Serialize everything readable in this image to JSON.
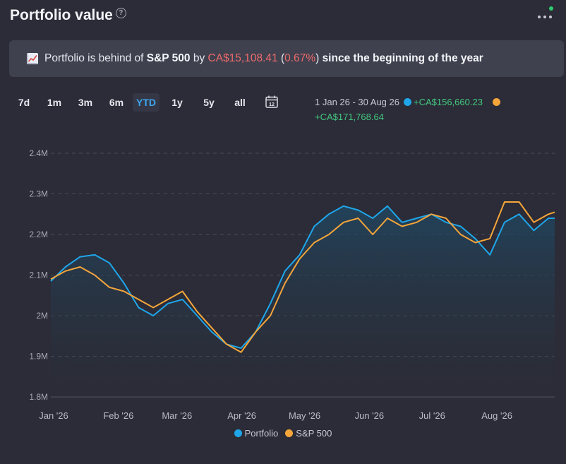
{
  "header": {
    "title": "Portfolio value",
    "help_glyph": "?"
  },
  "banner": {
    "icon": "chart-up-icon",
    "prefix": "Portfolio is behind of",
    "benchmark": "S&P 500",
    "by": "by",
    "amount": "CA$15,108.41",
    "paren_open": "(",
    "percent": "0.67%",
    "paren_close": ")",
    "suffix": "since the beginning of the year"
  },
  "timeframes": [
    "7d",
    "1m",
    "3m",
    "6m",
    "YTD",
    "1y",
    "5y",
    "all"
  ],
  "active_timeframe": "YTD",
  "range": {
    "dates": "1 Jan 26 - 30 Aug 26",
    "portfolio_change": "+CA$156,660.23",
    "benchmark_change": "+CA$171,768.64"
  },
  "colors": {
    "portfolio": "#1fa6ea",
    "benchmark": "#f5a53a",
    "positive": "#42c77f",
    "negative": "#ee6b6b"
  },
  "chart_data": {
    "type": "line",
    "x_labels": [
      "Jan '26",
      "Feb '26",
      "Mar '26",
      "Apr '26",
      "May '26",
      "Jun '26",
      "Jul '26",
      "Aug '26"
    ],
    "y_ticks": [
      "2.4M",
      "2.3M",
      "2.2M",
      "2.1M",
      "2M",
      "1.9M",
      "1.8M"
    ],
    "y_tick_values": [
      2400000,
      2300000,
      2200000,
      2100000,
      2000000,
      1900000,
      1800000
    ],
    "ylim": [
      1800000,
      2400000
    ],
    "x_range": [
      "2026-01-01",
      "2026-08-30"
    ],
    "grid": true,
    "legend_position": "bottom",
    "series": [
      {
        "name": "Portfolio",
        "x": [
          "2026-01-01",
          "2026-01-08",
          "2026-01-15",
          "2026-01-22",
          "2026-01-29",
          "2026-02-05",
          "2026-02-12",
          "2026-02-19",
          "2026-02-26",
          "2026-03-05",
          "2026-03-12",
          "2026-03-19",
          "2026-03-26",
          "2026-04-02",
          "2026-04-09",
          "2026-04-16",
          "2026-04-23",
          "2026-04-30",
          "2026-05-07",
          "2026-05-14",
          "2026-05-21",
          "2026-05-28",
          "2026-06-04",
          "2026-06-11",
          "2026-06-18",
          "2026-06-25",
          "2026-07-02",
          "2026-07-09",
          "2026-07-16",
          "2026-07-23",
          "2026-07-30",
          "2026-08-06",
          "2026-08-13",
          "2026-08-20",
          "2026-08-27",
          "2026-08-30"
        ],
        "values": [
          2085000,
          2120000,
          2145000,
          2150000,
          2130000,
          2080000,
          2020000,
          2000000,
          2030000,
          2040000,
          2000000,
          1960000,
          1930000,
          1920000,
          1960000,
          2030000,
          2110000,
          2150000,
          2220000,
          2250000,
          2270000,
          2260000,
          2240000,
          2270000,
          2230000,
          2240000,
          2250000,
          2230000,
          2220000,
          2190000,
          2150000,
          2230000,
          2250000,
          2210000,
          2240000,
          2240000
        ]
      },
      {
        "name": "S&P 500",
        "x": [
          "2026-01-01",
          "2026-01-08",
          "2026-01-15",
          "2026-01-22",
          "2026-01-29",
          "2026-02-05",
          "2026-02-12",
          "2026-02-19",
          "2026-02-26",
          "2026-03-05",
          "2026-03-12",
          "2026-03-19",
          "2026-03-26",
          "2026-04-02",
          "2026-04-09",
          "2026-04-16",
          "2026-04-23",
          "2026-04-30",
          "2026-05-07",
          "2026-05-14",
          "2026-05-21",
          "2026-05-28",
          "2026-06-04",
          "2026-06-11",
          "2026-06-18",
          "2026-06-25",
          "2026-07-02",
          "2026-07-09",
          "2026-07-16",
          "2026-07-23",
          "2026-07-30",
          "2026-08-06",
          "2026-08-13",
          "2026-08-20",
          "2026-08-27",
          "2026-08-30"
        ],
        "values": [
          2090000,
          2110000,
          2120000,
          2100000,
          2070000,
          2060000,
          2040000,
          2020000,
          2040000,
          2060000,
          2010000,
          1970000,
          1930000,
          1910000,
          1960000,
          2000000,
          2080000,
          2140000,
          2180000,
          2200000,
          2230000,
          2240000,
          2200000,
          2240000,
          2220000,
          2230000,
          2250000,
          2240000,
          2200000,
          2180000,
          2190000,
          2280000,
          2280000,
          2230000,
          2250000,
          2255000
        ]
      }
    ]
  }
}
